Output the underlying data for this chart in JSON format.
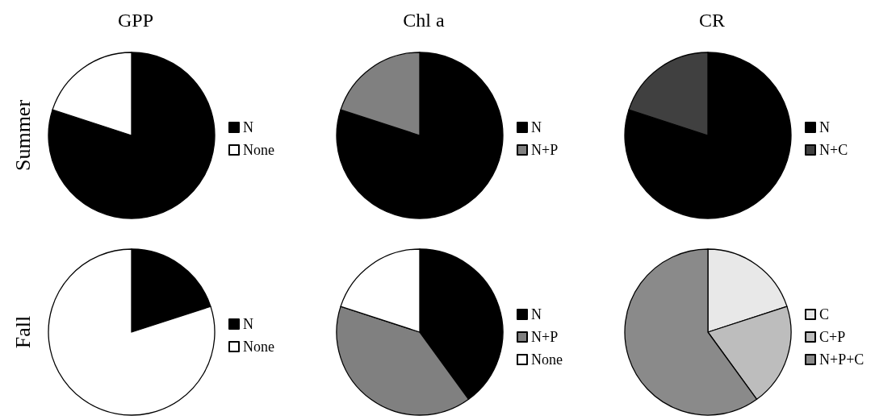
{
  "chart_data": [
    {
      "type": "pie",
      "title": "GPP",
      "ylabel": "Summer",
      "categories": [
        "N",
        "None"
      ],
      "values": [
        80,
        20
      ],
      "colors": [
        "#000000",
        "#ffffff"
      ],
      "legend": "right"
    },
    {
      "type": "pie",
      "title": "Chl a",
      "categories": [
        "N",
        "N+P"
      ],
      "values": [
        80,
        20
      ],
      "colors": [
        "#000000",
        "#808080"
      ],
      "legend": "right"
    },
    {
      "type": "pie",
      "title": "CR",
      "categories": [
        "N",
        "N+C"
      ],
      "values": [
        80,
        20
      ],
      "colors": [
        "#000000",
        "#404040"
      ],
      "legend": "right"
    },
    {
      "type": "pie",
      "ylabel": "Fall",
      "categories": [
        "N",
        "None"
      ],
      "values": [
        20,
        80
      ],
      "colors": [
        "#000000",
        "#ffffff"
      ],
      "legend": "right"
    },
    {
      "type": "pie",
      "categories": [
        "N",
        "N+P",
        "None"
      ],
      "values": [
        40,
        40,
        20
      ],
      "colors": [
        "#000000",
        "#808080",
        "#ffffff"
      ],
      "legend": "right"
    },
    {
      "type": "pie",
      "categories": [
        "C",
        "C+P",
        "N+P+C"
      ],
      "values": [
        20,
        20,
        60
      ],
      "colors": [
        "#e8e8e8",
        "#bdbdbd",
        "#8a8a8a"
      ],
      "legend": "right"
    }
  ]
}
